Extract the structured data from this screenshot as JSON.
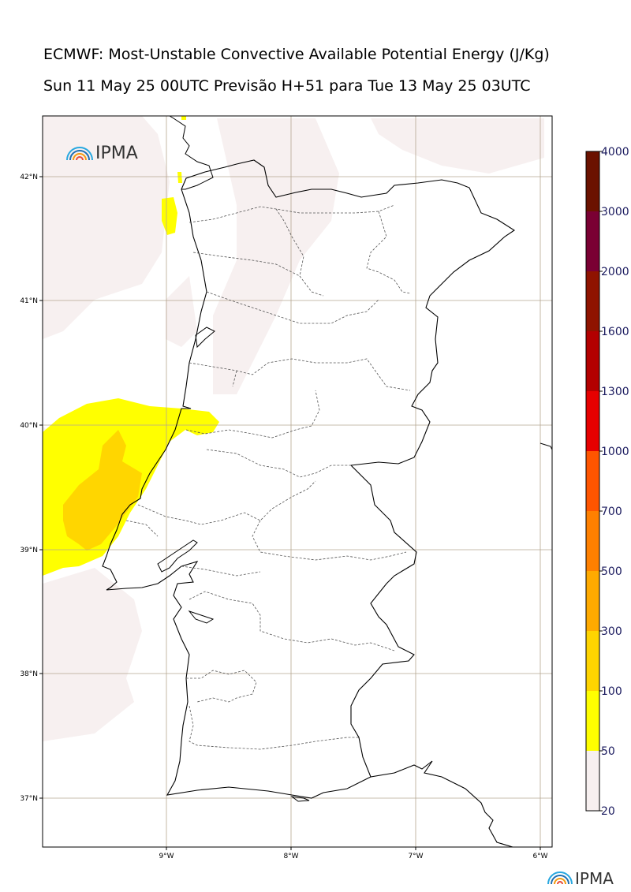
{
  "title": {
    "line1": "ECMWF: Most-Unstable Convective Available Potential Energy (J/Kg)",
    "line2": "Sun 11 May 25 00UTC Previsão H+51 para Tue 13 May 25 03UTC"
  },
  "logo": {
    "text": "IPMA",
    "icon": "rainbow-arc-icon"
  },
  "map": {
    "lat_labels": [
      "42°N",
      "41°N",
      "40°N",
      "39°N",
      "38°N",
      "37°N"
    ],
    "lon_labels": [
      "9°W",
      "8°W",
      "7°W",
      "6°W"
    ]
  },
  "colorbar": {
    "labels": [
      "4000",
      "3000",
      "2000",
      "1600",
      "1300",
      "1000",
      "700",
      "500",
      "300",
      "100",
      "50",
      "20"
    ],
    "colors": [
      "#6b1200",
      "#7a0033",
      "#8f1300",
      "#b30000",
      "#e60000",
      "#ff5500",
      "#ff8000",
      "#ffaa00",
      "#ffd400",
      "#ffff00",
      "#f7f0f0"
    ]
  }
}
